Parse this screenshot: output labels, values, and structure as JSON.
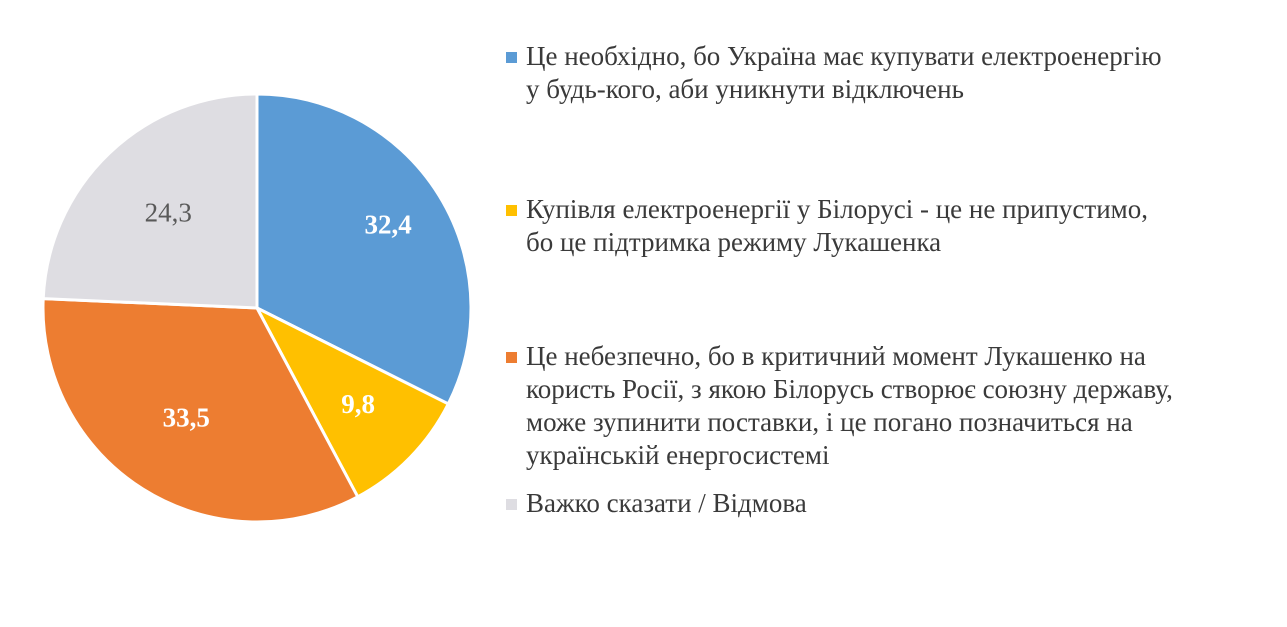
{
  "chart_data": {
    "type": "pie",
    "categories": [
      "Це необхідно, бо Україна має купувати електроенергію у будь-кого, аби уникнути відключень",
      "Купівля електроенергії у Білорусі - це не припустимо, бо це підтримка режиму Лукашенка",
      "Це небезпечно, бо в критичний момент Лукашенко на користь Росії, з якою Білорусь створює союзну державу, може зупинити поставки, і це погано позначиться на українській енергосистемі",
      "Важко сказати / Відмова"
    ],
    "values": [
      32.4,
      9.8,
      33.5,
      24.3
    ],
    "value_labels": [
      "32,4",
      "9,8",
      "33,5",
      "24,3"
    ],
    "colors": [
      "#5B9BD5",
      "#FFC000",
      "#ED7D31",
      "#DEDDE2"
    ],
    "label_colors": [
      "#ffffff",
      "#ffffff",
      "#ffffff",
      "#595959"
    ],
    "legend_position": "right",
    "start_angle": "top, clockwise"
  },
  "legend": {
    "items": [
      {
        "text": "Це необхідно, бо Україна має купувати електроенергію\nу будь-кого, аби уникнути відключень",
        "color": "#5B9BD5"
      },
      {
        "text": "Купівля електроенергії у Білорусі - це не припустимо,\nбо це підтримка режиму Лукашенка",
        "color": "#FFC000"
      },
      {
        "text": "Це небезпечно, бо в критичний момент Лукашенко на\nкористь Росії, з якою Білорусь створює союзну державу,\nможе зупинити поставки, і це погано позначиться на\nукраїнській енергосистемі",
        "color": "#ED7D31"
      },
      {
        "text": "Важко сказати / Відмова",
        "color": "#DEDDE2"
      }
    ]
  }
}
